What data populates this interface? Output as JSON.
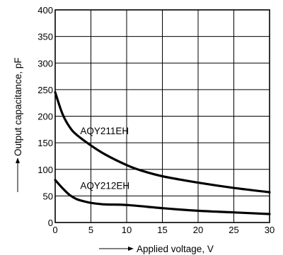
{
  "chart_data": {
    "type": "line",
    "xlabel": "Applied voltage, V",
    "ylabel": "Output capacitance, pF",
    "xlim": [
      0,
      30
    ],
    "ylim": [
      0,
      400
    ],
    "x_ticks": [
      0,
      5,
      10,
      15,
      20,
      25,
      30
    ],
    "y_ticks": [
      0,
      50,
      100,
      150,
      200,
      250,
      300,
      350,
      400
    ],
    "grid": true,
    "series": [
      {
        "name": "AQY211EH",
        "x": [
          0,
          1,
          2,
          3,
          5,
          7,
          10,
          12,
          15,
          20,
          25,
          30
        ],
        "y": [
          245,
          205,
          180,
          165,
          145,
          128,
          108,
          98,
          87,
          75,
          65,
          57
        ]
      },
      {
        "name": "AQY212EH",
        "x": [
          0,
          1,
          2,
          3,
          4,
          5,
          7,
          10,
          15,
          20,
          25,
          30
        ],
        "y": [
          80,
          65,
          52,
          44,
          40,
          37,
          34,
          33,
          27,
          22,
          19,
          16
        ]
      }
    ]
  }
}
